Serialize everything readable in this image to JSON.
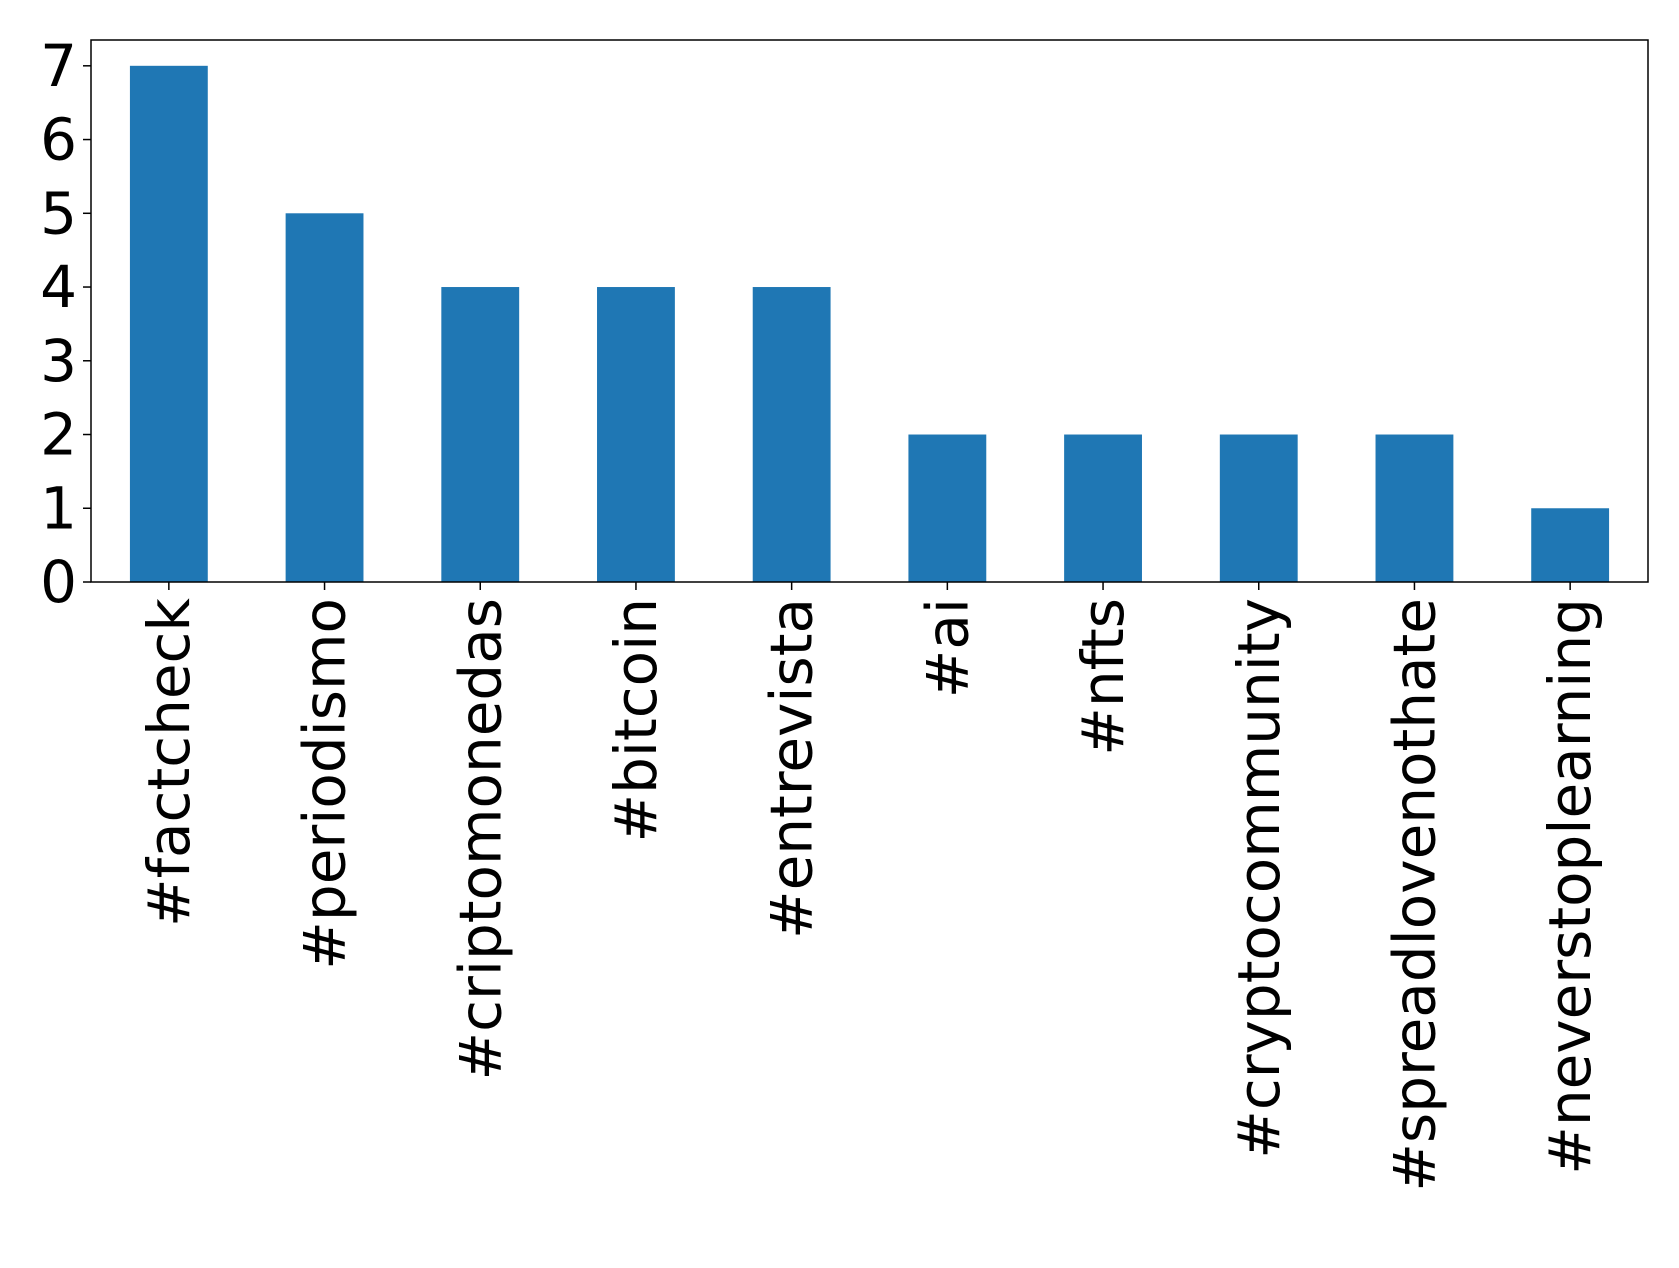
{
  "chart_data": {
    "type": "bar",
    "categories": [
      "#factcheck",
      "#periodismo",
      "#criptomonedas",
      "#bitcoin",
      "#entrevista",
      "#ai",
      "#nfts",
      "#cryptocommunity",
      "#spreadlovenothate",
      "#neverstoplearning"
    ],
    "values": [
      7,
      5,
      4,
      4,
      4,
      2,
      2,
      2,
      2,
      1
    ],
    "color": "#1f77b4",
    "ylim": [
      0,
      7.35
    ],
    "yticks": [
      0,
      1,
      2,
      3,
      4,
      5,
      6,
      7
    ],
    "grid": false
  }
}
